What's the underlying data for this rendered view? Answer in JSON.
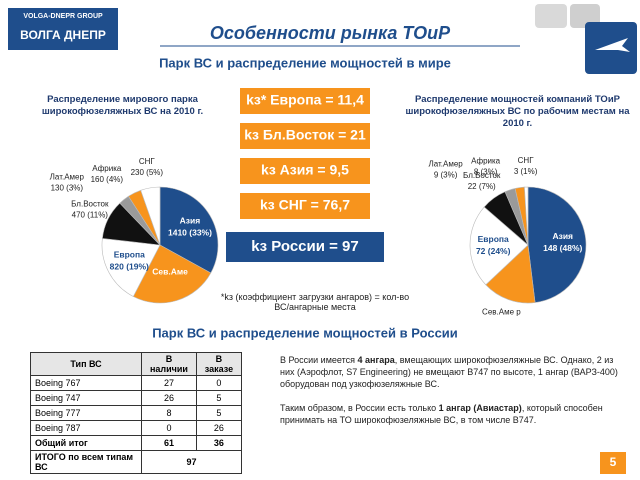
{
  "header": {
    "logo_top": "VOLGA-DNEPR GROUP",
    "logo_main": "ВОЛГА ДНЕПР",
    "title": "Особенности рынка ТОиР"
  },
  "section1_title": "Парк ВС и распределение мощностей в мире",
  "section2_title": "Парк ВС и распределение мощностей в России",
  "chart_data": [
    {
      "type": "pie",
      "title": "Распределение мирового парка широкофюзеляжных ВС на 2010 г.",
      "categories": [
        "Азия",
        "Сев.Аме",
        "Европа",
        "Бл.Восток",
        "Лат.Амер",
        "Африка",
        "СНГ"
      ],
      "values": [
        1410,
        1050,
        820,
        470,
        130,
        160,
        230
      ],
      "value_labels": [
        "1410 (33%)",
        null,
        "820 (19%)",
        "470 (11%)",
        "130 (3%)",
        "160 (4%)",
        "230 (5%)"
      ],
      "colors": [
        "#1f4e8c",
        "#f7941d",
        "#ffffff",
        "#111111",
        "#9a9a9a",
        "#f7941d",
        "#ffffff"
      ]
    },
    {
      "type": "pie",
      "title": "Распределение мощностей компаний ТОиР широкофюзеляжных ВС по рабочим местам на 2010 г.",
      "categories": [
        "Азия",
        "Сев.Аме р",
        "Европа",
        "Бл.Восток",
        "Лат.Амер",
        "Африка",
        "СНГ"
      ],
      "values": [
        148,
        46,
        72,
        22,
        9,
        8,
        3
      ],
      "value_labels": [
        "148 (48%)",
        null,
        "72 (24%)",
        "22 (7%)",
        "9 (3%)",
        "8 (3%)",
        "3 (1%)"
      ],
      "colors": [
        "#1f4e8c",
        "#f7941d",
        "#ffffff",
        "#111111",
        "#9a9a9a",
        "#f7941d",
        "#ffffff"
      ]
    }
  ],
  "ratios": [
    "kз* Европа = 11,4",
    "kз Бл.Восток = 21",
    "kз Азия = 9,5",
    "kз СНГ = 76,7"
  ],
  "russia_ratio": "kз России = 97",
  "note": "*kз (коэффициент загрузки ангаров) = кол-во ВС/ангарные места",
  "table": {
    "header": [
      "Тип ВС",
      "В наличии",
      "В заказе"
    ],
    "rows": [
      [
        "Boeing 767",
        27,
        0
      ],
      [
        "Boeing 747",
        26,
        5
      ],
      [
        "Boeing 777",
        8,
        5
      ],
      [
        "Boeing 787",
        0,
        26
      ],
      [
        "Общий итог",
        61,
        36
      ],
      [
        "ИТОГО по всем типам ВС",
        97,
        null
      ]
    ]
  },
  "paragraphs": [
    [
      "В России имеется ",
      "4 ангара",
      ", вмещающих широкофюзеляжные ВС. Однако, 2 из них (Аэрофлот, S7 Engineering) не вмещают B747 по высоте, 1 ангар (ВАРЗ-400) оборудован под узкофюзеляжные ВС."
    ],
    [
      "Таким образом, в России есть только ",
      "1 ангар (Авиастар)",
      ", который способен принимать на ТО широкофюзеляжные ВС, в том числе B747."
    ]
  ],
  "page_number": "5"
}
